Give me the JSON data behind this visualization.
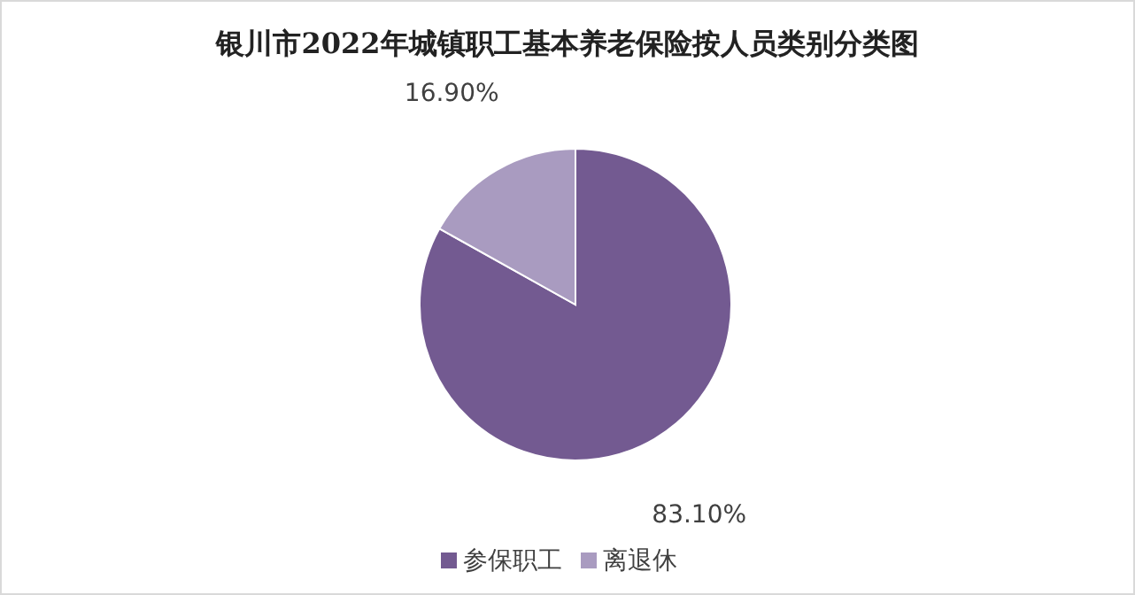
{
  "chart_data": {
    "type": "pie",
    "title": "银川市2022年城镇职工基本养老保险按人员类别分类图",
    "categories": [
      "参保职工",
      "离退休"
    ],
    "values": [
      83.1,
      16.9
    ],
    "colors": [
      "#735a91",
      "#a99bc0"
    ],
    "value_labels": [
      "83.10%",
      "16.90%"
    ],
    "legend": "bottom"
  }
}
